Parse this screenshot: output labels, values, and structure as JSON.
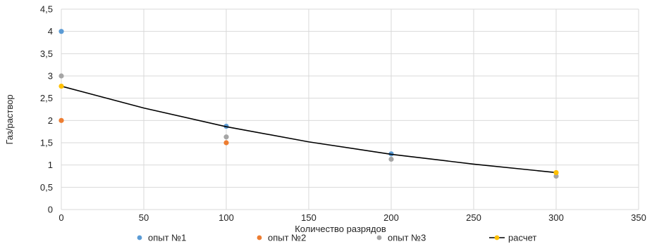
{
  "chart_data": {
    "type": "scatter",
    "title": "",
    "xlabel": "Количество разрядов",
    "ylabel": "Газ/раствор",
    "xlim": [
      0,
      350
    ],
    "ylim": [
      0,
      4.5
    ],
    "x_ticks": [
      "0",
      "50",
      "100",
      "150",
      "200",
      "250",
      "300",
      "350"
    ],
    "y_ticks": [
      "0",
      "0,5",
      "1",
      "1,5",
      "2",
      "2,5",
      "3",
      "3,5",
      "4",
      "4,5"
    ],
    "grid": true,
    "legend_position": "bottom",
    "series": [
      {
        "name": "опыт №1",
        "color": "#5b9bd5",
        "mode": "markers",
        "points": [
          {
            "x": 0,
            "y": 4.0
          },
          {
            "x": 100,
            "y": 1.87
          },
          {
            "x": 200,
            "y": 1.25
          }
        ]
      },
      {
        "name": "опыт №2",
        "color": "#ed7d31",
        "mode": "markers",
        "points": [
          {
            "x": 0,
            "y": 2.0
          },
          {
            "x": 100,
            "y": 1.5
          }
        ]
      },
      {
        "name": "опыт №3",
        "color": "#a5a5a5",
        "mode": "markers",
        "points": [
          {
            "x": 0,
            "y": 3.0
          },
          {
            "x": 100,
            "y": 1.63
          },
          {
            "x": 200,
            "y": 1.13
          },
          {
            "x": 300,
            "y": 0.75
          }
        ]
      },
      {
        "name": "расчет",
        "color": "#ffc000",
        "mode": "line+markers",
        "line_color": "#000000",
        "points": [
          {
            "x": 0,
            "y": 2.77
          },
          {
            "x": 300,
            "y": 0.83
          }
        ],
        "curve": [
          {
            "x": 0,
            "y": 2.77
          },
          {
            "x": 50,
            "y": 2.28
          },
          {
            "x": 100,
            "y": 1.86
          },
          {
            "x": 150,
            "y": 1.52
          },
          {
            "x": 200,
            "y": 1.24
          },
          {
            "x": 250,
            "y": 1.02
          },
          {
            "x": 300,
            "y": 0.83
          }
        ]
      }
    ]
  }
}
